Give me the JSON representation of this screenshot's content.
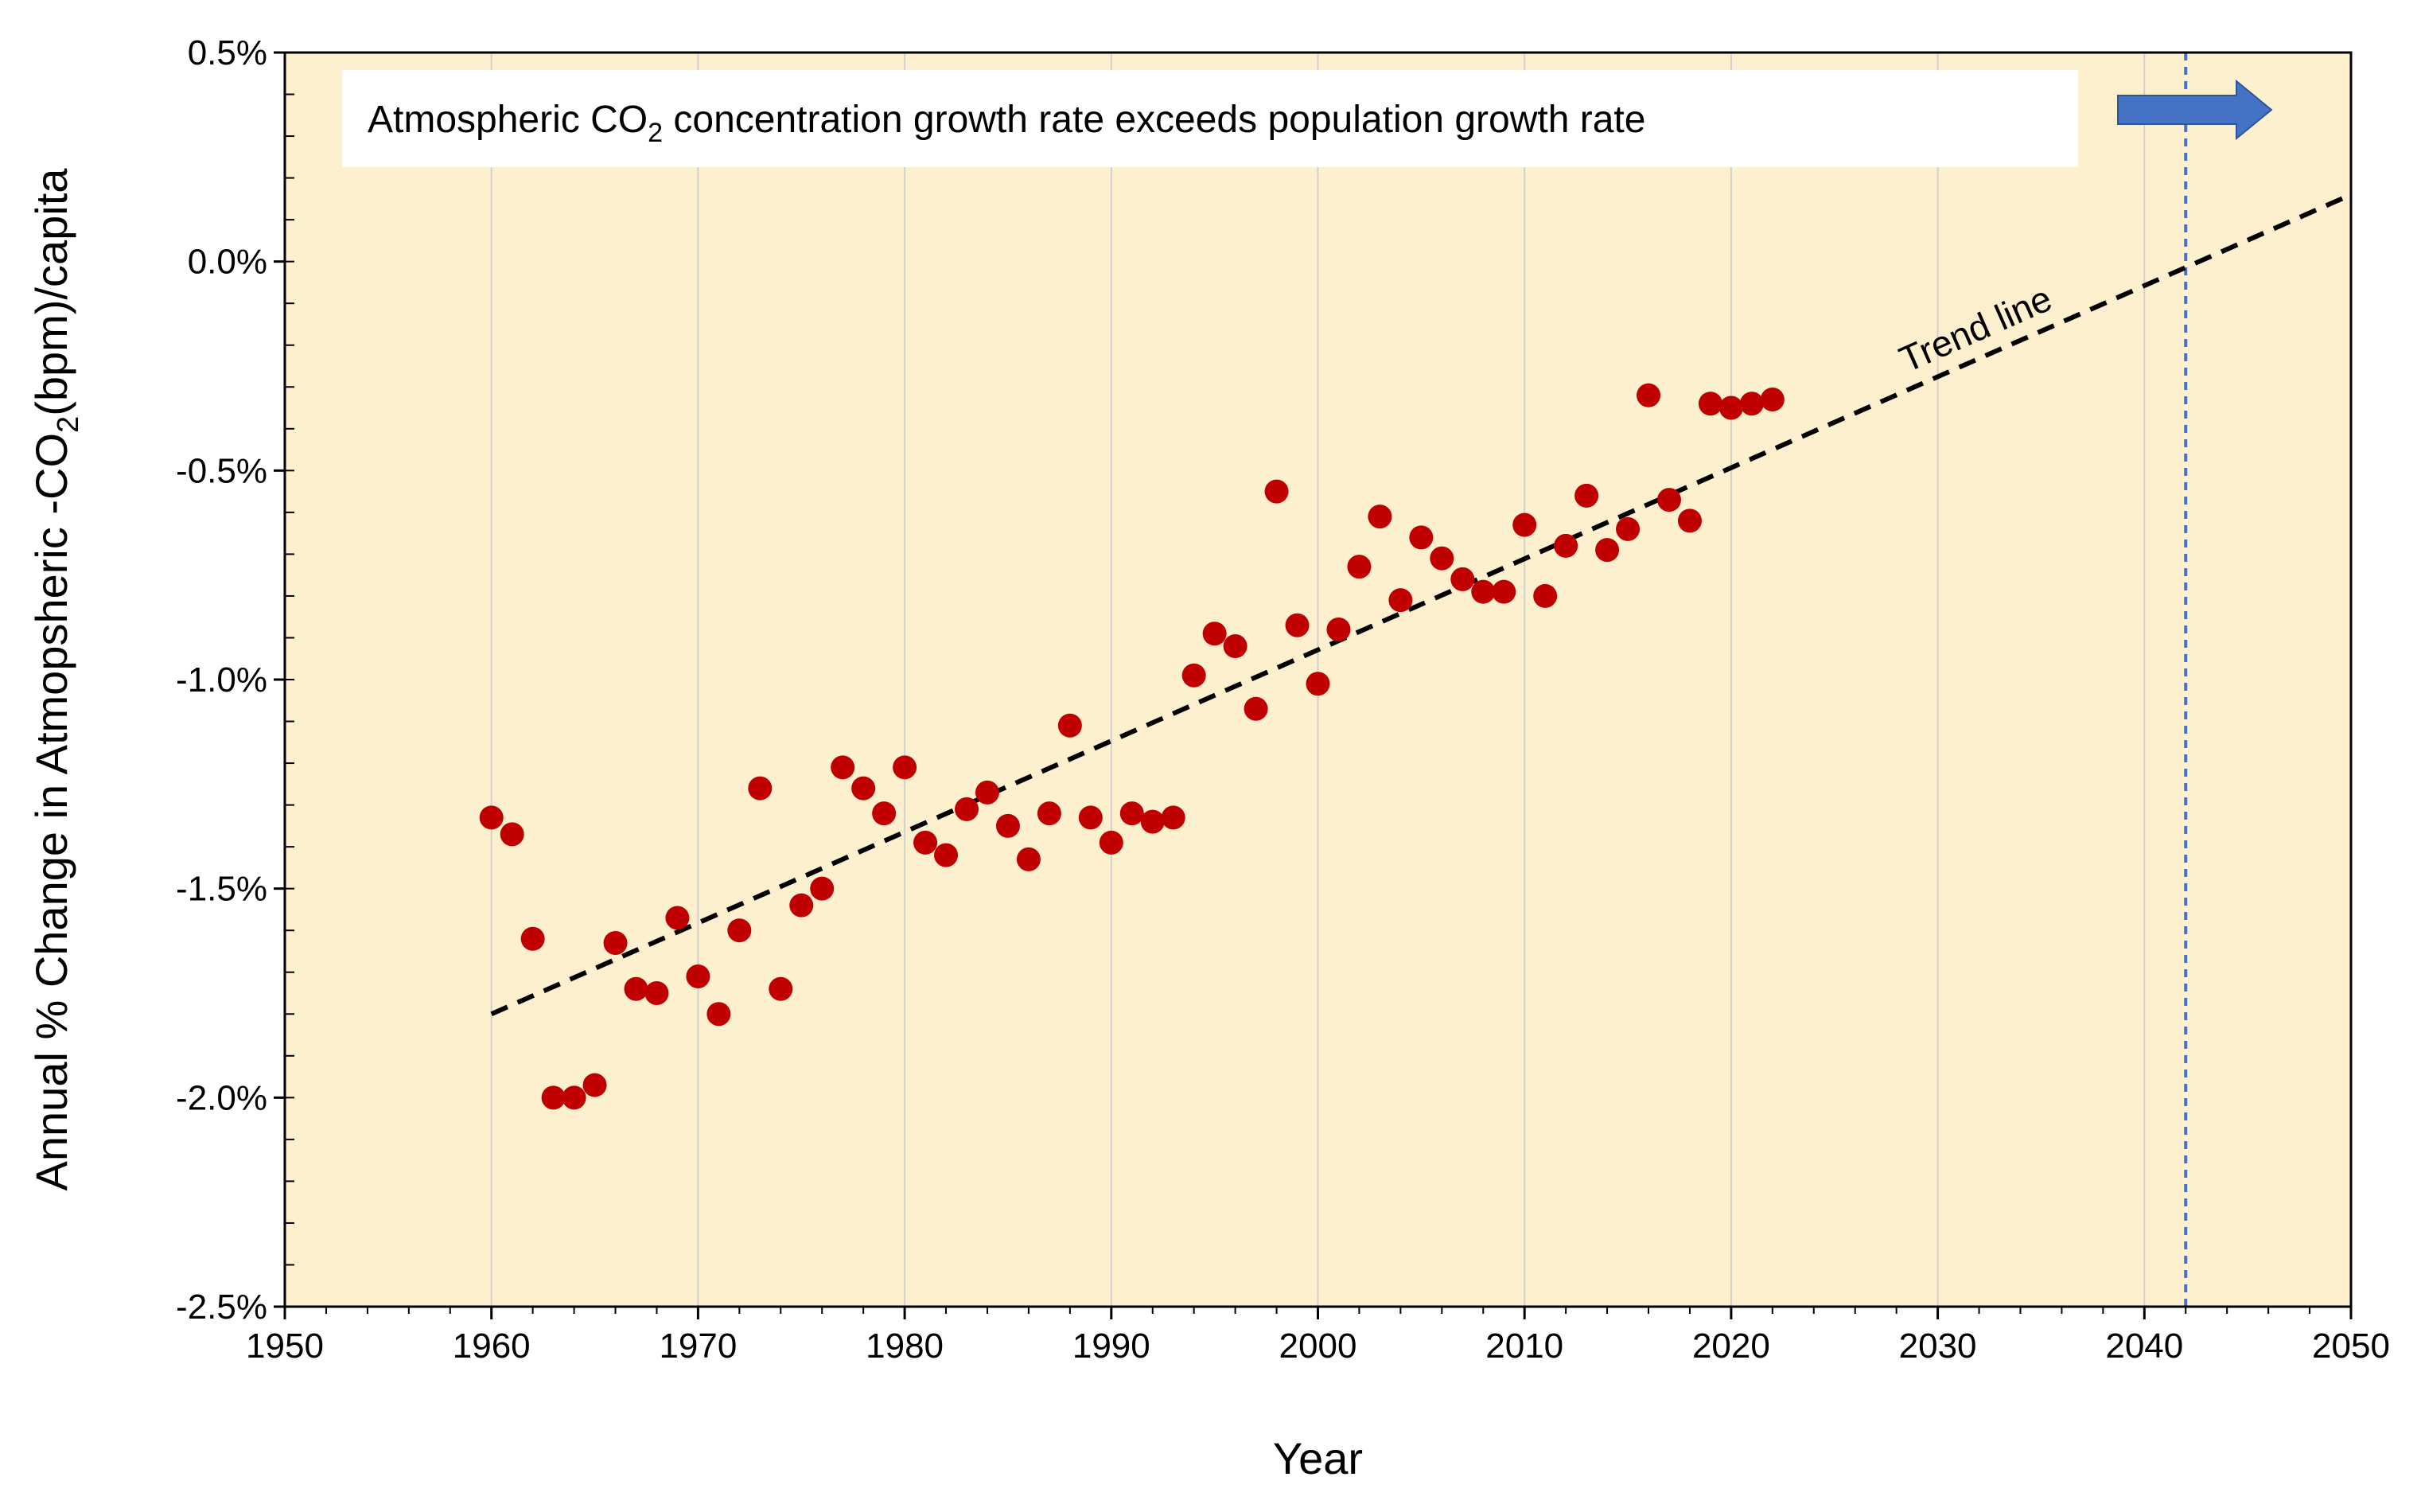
{
  "chart_data": {
    "type": "scatter",
    "xlabel": "Year",
    "ylabel": {
      "pre": "Annual % Change in Atmopsheric -CO",
      "sub": "2",
      "post": "(bpm)/capita"
    },
    "xlim": [
      1950,
      2050
    ],
    "ylim": [
      -2.5,
      0.5
    ],
    "x_ticks": [
      1950,
      1960,
      1970,
      1980,
      1990,
      2000,
      2010,
      2020,
      2030,
      2040,
      2050
    ],
    "y_ticks": [
      0.5,
      0.0,
      -0.5,
      -1.0,
      -1.5,
      -2.0,
      -2.5
    ],
    "y_tick_labels": [
      "0.5%",
      "0.0%",
      "-0.5%",
      "-1.0%",
      "-1.5%",
      "-2.0%",
      "-2.5%"
    ],
    "grid": "vertical",
    "background_color": "#fdf0cf",
    "point_color": "#c00000",
    "annotation": {
      "pre": "Atmospheric CO",
      "sub": "2",
      "post": " concentration growth rate exceeds population growth rate",
      "arrow_color": "#4472c4"
    },
    "trend_line": {
      "label": "Trend line",
      "color": "#000000",
      "style": "dashed",
      "x": [
        1960,
        2050
      ],
      "y": [
        -1.8,
        0.16
      ]
    },
    "vertical_marker": {
      "x": 2042,
      "color": "#4472c4",
      "style": "dotted"
    },
    "points": [
      {
        "x": 1960,
        "y": -1.33
      },
      {
        "x": 1961,
        "y": -1.37
      },
      {
        "x": 1962,
        "y": -1.62
      },
      {
        "x": 1963,
        "y": -2.0
      },
      {
        "x": 1964,
        "y": -2.0
      },
      {
        "x": 1965,
        "y": -1.97
      },
      {
        "x": 1966,
        "y": -1.63
      },
      {
        "x": 1967,
        "y": -1.74
      },
      {
        "x": 1968,
        "y": -1.75
      },
      {
        "x": 1969,
        "y": -1.57
      },
      {
        "x": 1970,
        "y": -1.71
      },
      {
        "x": 1971,
        "y": -1.8
      },
      {
        "x": 1972,
        "y": -1.6
      },
      {
        "x": 1973,
        "y": -1.26
      },
      {
        "x": 1974,
        "y": -1.74
      },
      {
        "x": 1975,
        "y": -1.54
      },
      {
        "x": 1976,
        "y": -1.5
      },
      {
        "x": 1977,
        "y": -1.21
      },
      {
        "x": 1978,
        "y": -1.26
      },
      {
        "x": 1979,
        "y": -1.32
      },
      {
        "x": 1980,
        "y": -1.21
      },
      {
        "x": 1981,
        "y": -1.39
      },
      {
        "x": 1982,
        "y": -1.42
      },
      {
        "x": 1983,
        "y": -1.31
      },
      {
        "x": 1984,
        "y": -1.27
      },
      {
        "x": 1985,
        "y": -1.35
      },
      {
        "x": 1986,
        "y": -1.43
      },
      {
        "x": 1987,
        "y": -1.32
      },
      {
        "x": 1988,
        "y": -1.11
      },
      {
        "x": 1989,
        "y": -1.33
      },
      {
        "x": 1990,
        "y": -1.39
      },
      {
        "x": 1991,
        "y": -1.32
      },
      {
        "x": 1992,
        "y": -1.34
      },
      {
        "x": 1993,
        "y": -1.33
      },
      {
        "x": 1994,
        "y": -0.99
      },
      {
        "x": 1995,
        "y": -0.89
      },
      {
        "x": 1996,
        "y": -0.92
      },
      {
        "x": 1997,
        "y": -1.07
      },
      {
        "x": 1998,
        "y": -0.55
      },
      {
        "x": 1999,
        "y": -0.87
      },
      {
        "x": 2000,
        "y": -1.01
      },
      {
        "x": 2001,
        "y": -0.88
      },
      {
        "x": 2002,
        "y": -0.73
      },
      {
        "x": 2003,
        "y": -0.61
      },
      {
        "x": 2004,
        "y": -0.81
      },
      {
        "x": 2005,
        "y": -0.66
      },
      {
        "x": 2006,
        "y": -0.71
      },
      {
        "x": 2007,
        "y": -0.76
      },
      {
        "x": 2008,
        "y": -0.79
      },
      {
        "x": 2009,
        "y": -0.79
      },
      {
        "x": 2010,
        "y": -0.63
      },
      {
        "x": 2011,
        "y": -0.8
      },
      {
        "x": 2012,
        "y": -0.68
      },
      {
        "x": 2013,
        "y": -0.56
      },
      {
        "x": 2014,
        "y": -0.69
      },
      {
        "x": 2015,
        "y": -0.64
      },
      {
        "x": 2016,
        "y": -0.32
      },
      {
        "x": 2017,
        "y": -0.57
      },
      {
        "x": 2018,
        "y": -0.62
      },
      {
        "x": 2019,
        "y": -0.34
      },
      {
        "x": 2020,
        "y": -0.35
      },
      {
        "x": 2021,
        "y": -0.34
      },
      {
        "x": 2022,
        "y": -0.33
      }
    ]
  }
}
